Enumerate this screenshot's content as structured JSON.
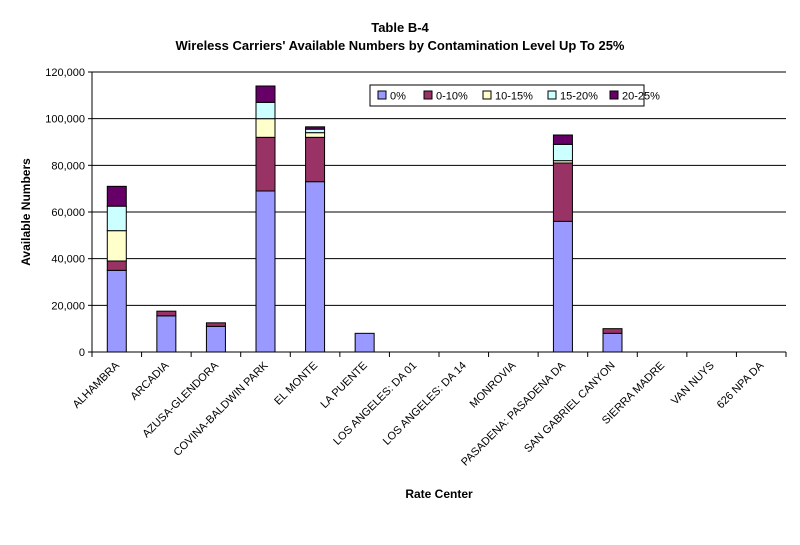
{
  "chart_data": {
    "type": "bar",
    "stacked": true,
    "title": "Table B-4",
    "subtitle": "Wireless Carriers' Available Numbers by Contamination Level Up To 25%",
    "xlabel": "Rate Center",
    "ylabel": "Available Numbers",
    "ylim": [
      0,
      120000
    ],
    "y_ticks": [
      "0",
      "20,000",
      "40,000",
      "60,000",
      "80,000",
      "100,000",
      "120,000"
    ],
    "grid": true,
    "legend_position": "top-right",
    "categories": [
      "ALHAMBRA",
      "ARCADIA",
      "AZUSA-GLENDORA",
      "COVINA-BALDWIN PARK",
      "EL MONTE",
      "LA PUENTE",
      "LOS ANGELES: DA 01",
      "LOS ANGELES: DA 14",
      "MONROVIA",
      "PASADENA: PASADENA DA",
      "SAN GABRIEL CANYON",
      "SIERRA MADRE",
      "VAN NUYS",
      "626 NPA DA"
    ],
    "series": [
      {
        "name": "0%",
        "color": "#9999ff",
        "values": [
          35000,
          15500,
          11000,
          69000,
          73000,
          8000,
          0,
          0,
          0,
          56000,
          8000,
          0,
          0,
          0
        ]
      },
      {
        "name": "0-10%",
        "color": "#993366",
        "values": [
          4000,
          2000,
          1500,
          23000,
          19000,
          0,
          0,
          0,
          0,
          25000,
          2000,
          0,
          0,
          0
        ]
      },
      {
        "name": "10-15%",
        "color": "#ffffcc",
        "values": [
          13000,
          0,
          0,
          8000,
          2000,
          0,
          0,
          0,
          0,
          1000,
          0,
          0,
          0,
          0
        ]
      },
      {
        "name": "15-20%",
        "color": "#ccffff",
        "values": [
          10500,
          0,
          0,
          7000,
          1500,
          0,
          0,
          0,
          0,
          7000,
          0,
          0,
          0,
          0
        ]
      },
      {
        "name": "20-25%",
        "color": "#660066",
        "values": [
          8500,
          0,
          0,
          7000,
          1000,
          0,
          0,
          0,
          0,
          4000,
          0,
          0,
          0,
          0
        ]
      }
    ]
  }
}
